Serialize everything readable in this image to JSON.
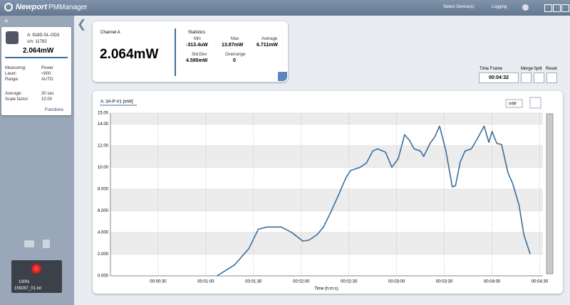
{
  "header": {
    "brand": "Newport",
    "app": "PMManager",
    "menu": [
      "Select Device(s)",
      "Logging"
    ]
  },
  "sidebar": {
    "device": {
      "name": "A: 918D-SL-OD3",
      "serial": "s/n: 11782",
      "reading": "2.064mW",
      "settings": [
        [
          "Measuring:",
          "Power"
        ],
        [
          "Laser:",
          "<800"
        ],
        [
          "Range:",
          "AUTO"
        ],
        [
          "Average:",
          "30 sec"
        ],
        [
          "Scale factor:",
          "10.00"
        ]
      ],
      "functions": "Functions"
    },
    "recorder": {
      "zoom": "100%",
      "file": "159287_01.txt"
    }
  },
  "panel": {
    "channel": "Channel A",
    "reading": "2.064mW",
    "stats_title": "Statistics",
    "stats": [
      {
        "label": "Min",
        "value": "-313.4uW"
      },
      {
        "label": "Max",
        "value": "13.87mW"
      },
      {
        "label": "Average",
        "value": "6.711mW"
      },
      {
        "label": "Std.Dev",
        "value": "4.595mW"
      },
      {
        "label": "Overrange",
        "value": "0"
      }
    ]
  },
  "timeframe": {
    "label": "Time Frame",
    "value": "00:04:32",
    "buttons": [
      "Merge",
      "Split",
      "Reset"
    ]
  },
  "chart_data": {
    "type": "line",
    "unit": "mW",
    "xlabel": "Time (h:m:s)",
    "series": [
      {
        "name": "A: 3A-P-V1 [mW]",
        "color": "#3b6e9c",
        "x": [
          67,
          78,
          87,
          93,
          98.5,
          107.5,
          114,
          121,
          125,
          130,
          134,
          139,
          143,
          148,
          151,
          157,
          161,
          165,
          168,
          173,
          177,
          181,
          185,
          188,
          191,
          195,
          197,
          201,
          204,
          207,
          211,
          215,
          217,
          220,
          223,
          227,
          231,
          235,
          238,
          240,
          243,
          246,
          250,
          253,
          257,
          260,
          264
        ],
        "values": [
          0,
          1.0,
          2.5,
          4.3,
          4.5,
          4.5,
          4.0,
          3.2,
          3.3,
          3.8,
          4.5,
          6.0,
          7.3,
          9.0,
          9.7,
          10.0,
          10.4,
          11.5,
          11.7,
          11.4,
          10.0,
          10.8,
          13.0,
          12.5,
          11.7,
          11.5,
          11.0,
          12.2,
          12.8,
          13.8,
          11.5,
          8.2,
          8.3,
          10.5,
          11.5,
          11.7,
          12.7,
          13.8,
          12.3,
          13.3,
          12.2,
          12.1,
          9.5,
          8.5,
          6.5,
          3.8,
          2.0
        ]
      }
    ],
    "xlim": [
      0,
      272
    ],
    "xticks": [
      {
        "value": 30,
        "label": "00:00:30"
      },
      {
        "value": 60,
        "label": "00:01:00"
      },
      {
        "value": 90,
        "label": "00:01:30"
      },
      {
        "value": 120,
        "label": "00:02:00"
      },
      {
        "value": 150,
        "label": "00:02:30"
      },
      {
        "value": 180,
        "label": "00:03:00"
      },
      {
        "value": 210,
        "label": "00:03:30"
      },
      {
        "value": 240,
        "label": "00:04:00"
      },
      {
        "value": 270,
        "label": "00:04:30"
      }
    ],
    "ylim": [
      0,
      15
    ],
    "yticks": [
      {
        "value": 0,
        "label": "0.000"
      },
      {
        "value": 2,
        "label": "2.000"
      },
      {
        "value": 4,
        "label": "4.000"
      },
      {
        "value": 6,
        "label": "6.000"
      },
      {
        "value": 8,
        "label": "8.000"
      },
      {
        "value": 10,
        "label": "10.00"
      },
      {
        "value": 12,
        "label": "12.00"
      },
      {
        "value": 14,
        "label": "14.00"
      },
      {
        "value": 15,
        "label": "15.00"
      }
    ],
    "grid": true
  }
}
